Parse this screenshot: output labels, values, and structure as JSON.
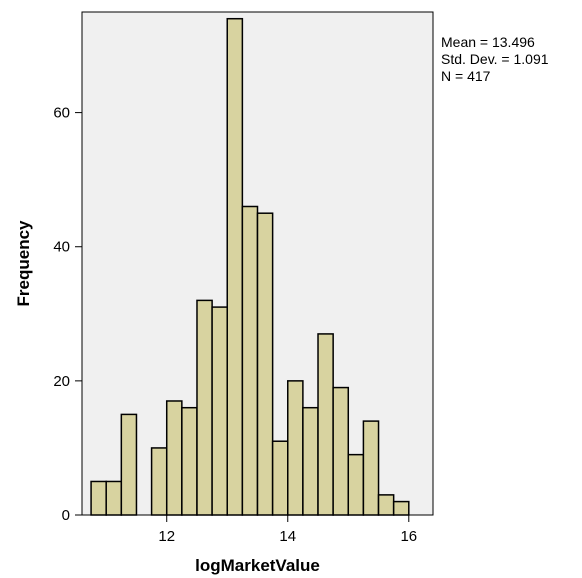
{
  "chart_data": {
    "type": "bar",
    "subtype": "histogram",
    "xlabel": "logMarketValue",
    "ylabel": "Frequency",
    "xlim": [
      10.6,
      16.4
    ],
    "ylim": [
      0,
      75
    ],
    "x_ticks": [
      12,
      14,
      16
    ],
    "y_ticks": [
      0,
      20,
      40,
      60
    ],
    "grid": false,
    "bin_width": 0.25,
    "bins": [
      {
        "start": 10.75,
        "count": 5
      },
      {
        "start": 11.0,
        "count": 5
      },
      {
        "start": 11.25,
        "count": 15
      },
      {
        "start": 11.75,
        "count": 10
      },
      {
        "start": 12.0,
        "count": 17
      },
      {
        "start": 12.25,
        "count": 16
      },
      {
        "start": 12.5,
        "count": 32
      },
      {
        "start": 12.75,
        "count": 31
      },
      {
        "start": 13.0,
        "count": 74
      },
      {
        "start": 13.25,
        "count": 46
      },
      {
        "start": 13.5,
        "count": 45
      },
      {
        "start": 13.75,
        "count": 11
      },
      {
        "start": 14.0,
        "count": 20
      },
      {
        "start": 14.25,
        "count": 16
      },
      {
        "start": 14.5,
        "count": 27
      },
      {
        "start": 14.75,
        "count": 19
      },
      {
        "start": 15.0,
        "count": 9
      },
      {
        "start": 15.25,
        "count": 14
      },
      {
        "start": 15.5,
        "count": 3
      },
      {
        "start": 15.75,
        "count": 2
      }
    ],
    "stats": {
      "mean_text": "Mean = 13.496",
      "std_text": "Std. Dev. = 1.091",
      "n_text": "N = 417"
    },
    "colors": {
      "plot_bg": "#f0f0f0",
      "bar_fill": "#d8d3a0",
      "bar_stroke": "#000000"
    }
  }
}
